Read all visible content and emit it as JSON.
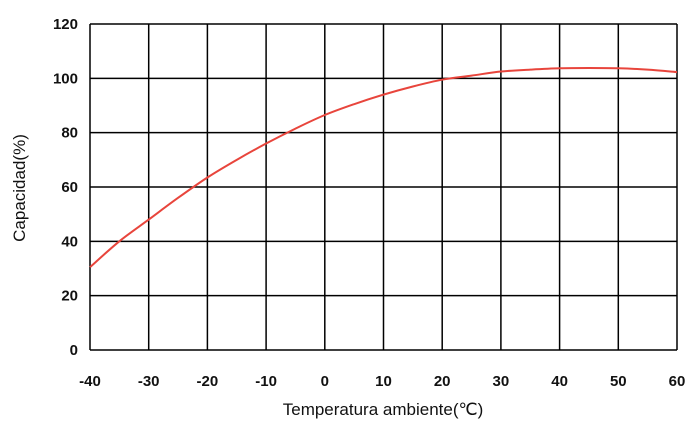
{
  "chart_data": {
    "type": "line",
    "title": "",
    "xlabel": "Temperatura ambiente(℃)",
    "ylabel": "Capacidad(%)",
    "xlim": [
      -40,
      60
    ],
    "ylim": [
      0,
      120
    ],
    "x_ticks": [
      -40,
      -30,
      -20,
      -10,
      0,
      10,
      20,
      30,
      40,
      50,
      60
    ],
    "y_ticks": [
      0,
      20,
      40,
      60,
      80,
      100,
      120
    ],
    "grid": true,
    "legend": "none",
    "line_color": "#e8453c",
    "series": [
      {
        "x": [
          -40,
          -35,
          -30,
          -25,
          -20,
          -15,
          -10,
          -5,
          0,
          5,
          10,
          15,
          20,
          25,
          30,
          35,
          40,
          45,
          50,
          55,
          60
        ],
        "values": [
          30.5,
          40,
          48,
          56,
          63.5,
          70,
          76,
          81.5,
          86.5,
          90.5,
          94,
          97,
          99.5,
          101,
          102.5,
          103.2,
          103.7,
          103.8,
          103.7,
          103.2,
          102.3
        ]
      }
    ]
  }
}
